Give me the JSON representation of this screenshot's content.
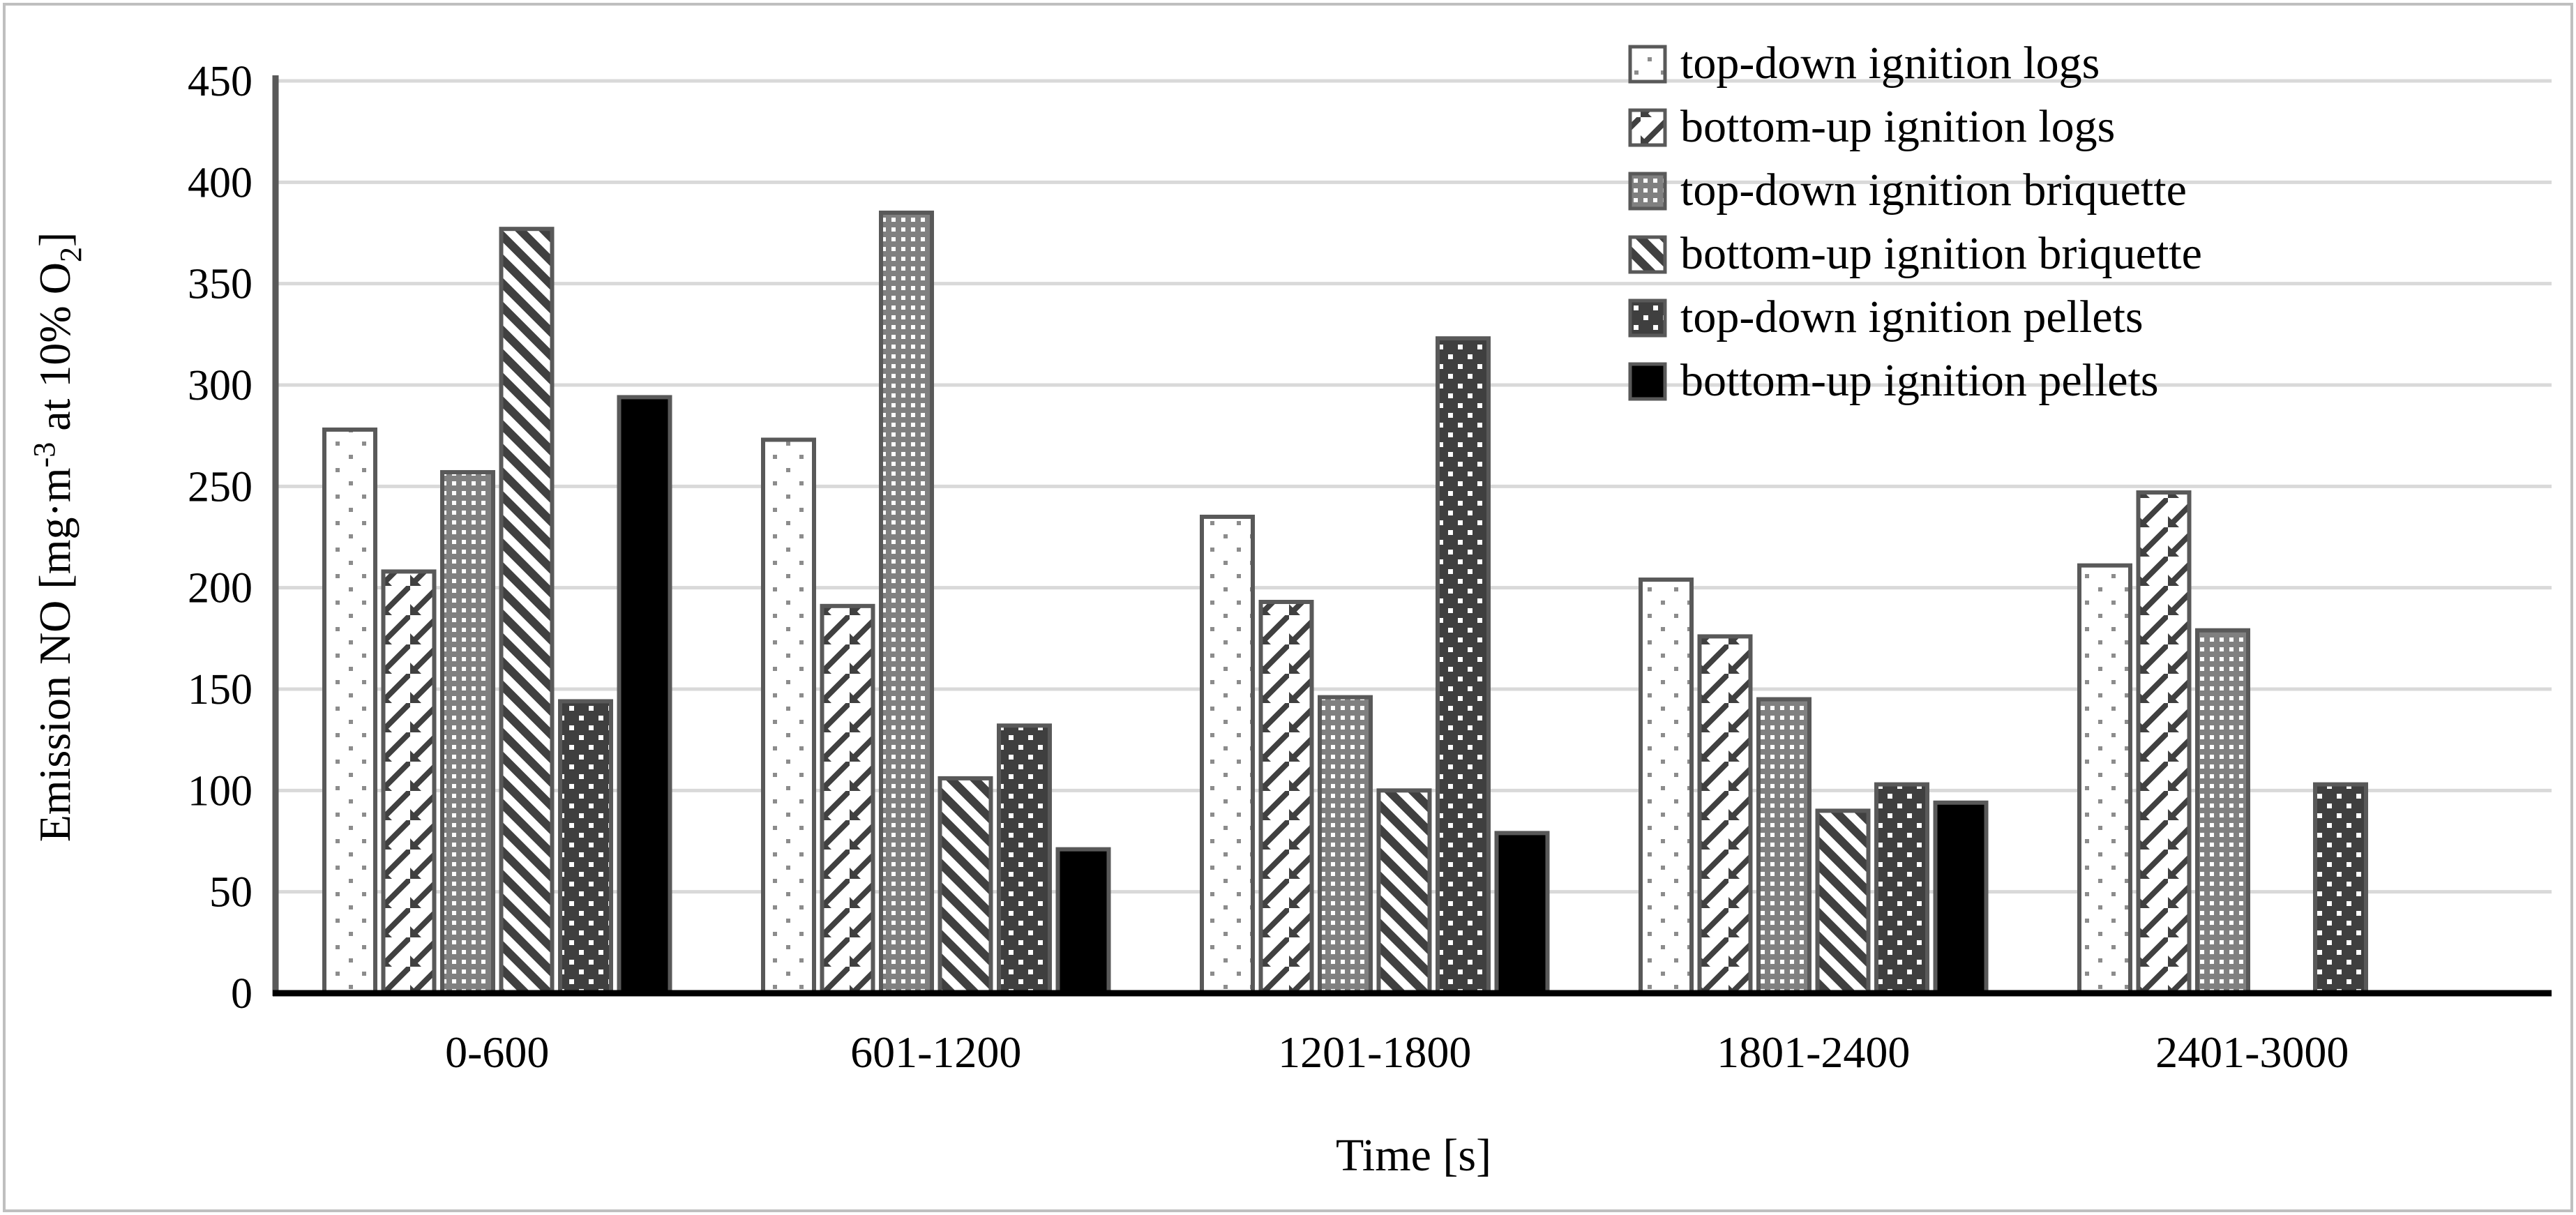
{
  "figure": {
    "border_color": "#bfbfbf",
    "background": "#ffffff"
  },
  "chart_data": {
    "type": "bar",
    "title": "",
    "xlabel": "Time [s]",
    "ylabel": "Emission NO [mg·m⁻³ at 10% O₂]",
    "ylabel_parts": [
      {
        "t": "Emission NO [mg·m"
      },
      {
        "t": "-3",
        "style": "sup"
      },
      {
        "t": " at 10% O"
      },
      {
        "t": "2",
        "style": "sub"
      },
      {
        "t": "]"
      }
    ],
    "categories": [
      "0-600",
      "601-1200",
      "1201-1800",
      "1801-2400",
      "2401-3000"
    ],
    "series": [
      {
        "name": "top-down ignition logs",
        "pattern": "sparse-gray-dots-on-white",
        "values": [
          278,
          273,
          235,
          204,
          211
        ]
      },
      {
        "name": "bottom-up ignition logs",
        "pattern": "thin-diagonal-shingle-hatch",
        "values": [
          208,
          191,
          193,
          176,
          247
        ]
      },
      {
        "name": "top-down ignition briquette",
        "pattern": "white-square-grid-on-gray",
        "values": [
          257,
          385,
          146,
          145,
          179
        ]
      },
      {
        "name": "bottom-up ignition briquette",
        "pattern": "thick-diagonal-stripes",
        "values": [
          377,
          106,
          100,
          90,
          null
        ]
      },
      {
        "name": "top-down ignition pellets",
        "pattern": "white-dots-on-dark",
        "values": [
          144,
          132,
          323,
          103,
          103
        ]
      },
      {
        "name": "bottom-up ignition pellets",
        "pattern": "solid-black",
        "values": [
          294,
          71,
          79,
          94,
          null
        ]
      }
    ],
    "ylim": [
      0,
      450
    ],
    "ytick_step": 50,
    "yticks": [
      0,
      50,
      100,
      150,
      200,
      250,
      300,
      350,
      400,
      450
    ],
    "grid": true,
    "legend_position": "top-right",
    "colors": {
      "gridline": "#d9d9d9",
      "bar_outline": "#595959",
      "y_axis_line": "#595959",
      "x_axis_line": "#000000",
      "pattern_dark": "#404040",
      "pattern_gray": "#808080",
      "text": "#000000"
    }
  }
}
